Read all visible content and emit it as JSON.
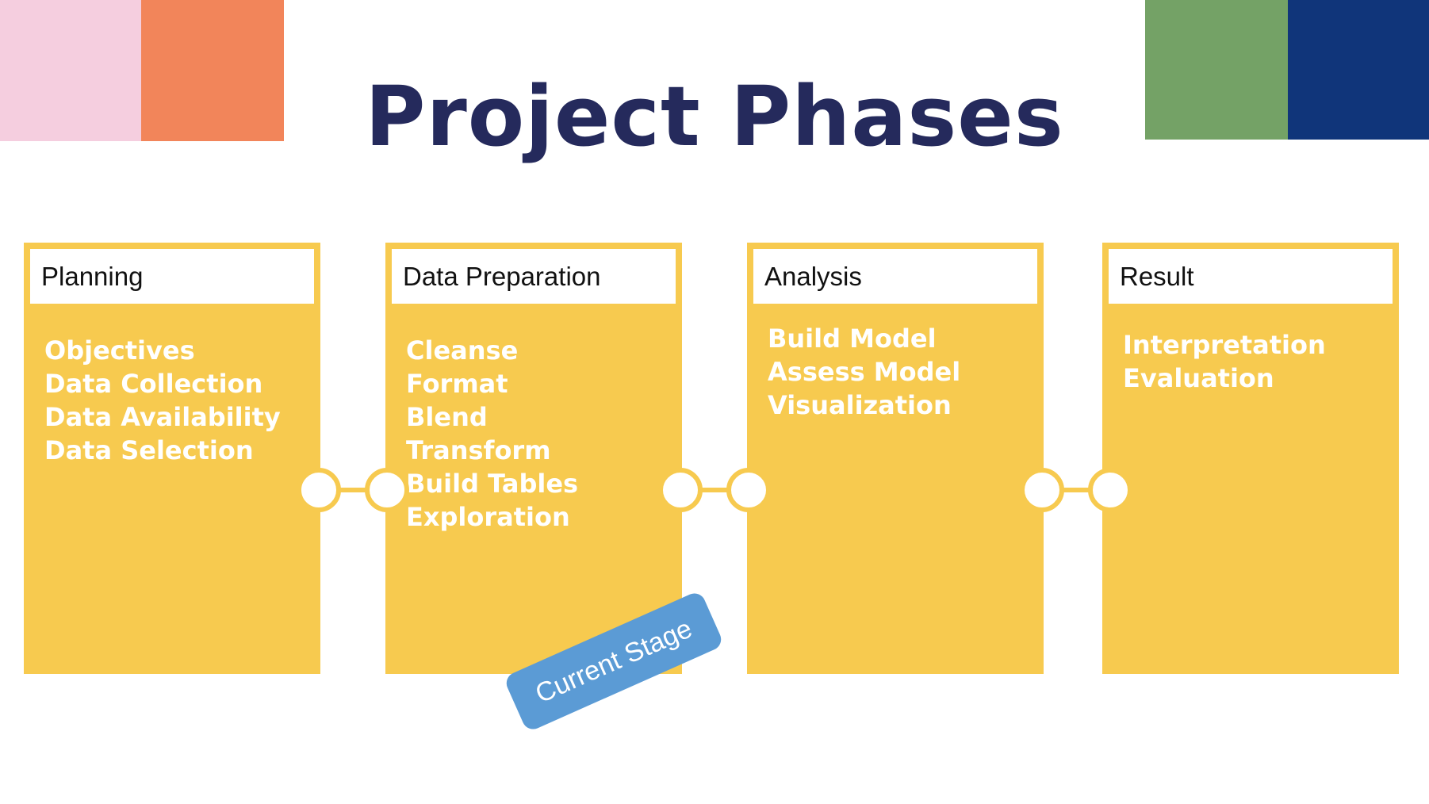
{
  "title": "Project Phases",
  "badge": "Current Stage",
  "colors": {
    "title": "#252a5c",
    "phase_fill": "#f7ca4f",
    "connector": "#f7ca4f",
    "node_fill": "#ffffff",
    "badge": "#5b9bd5",
    "corner_pink": "#f5cedf",
    "corner_orange": "#f2855a",
    "corner_green": "#74a266",
    "corner_blue": "#10357a"
  },
  "phases": [
    {
      "name": "Planning",
      "items": [
        "Objectives",
        "Data Collection",
        "Data Availability",
        "Data Selection"
      ]
    },
    {
      "name": "Data Preparation",
      "items": [
        "Cleanse",
        "Format",
        "Blend",
        "Transform",
        "Build Tables",
        "Exploration"
      ]
    },
    {
      "name": "Analysis",
      "items": [
        "Build Model",
        "Assess Model",
        "Visualization"
      ]
    },
    {
      "name": "Result",
      "items": [
        "Interpretation",
        "Evaluation"
      ]
    }
  ]
}
